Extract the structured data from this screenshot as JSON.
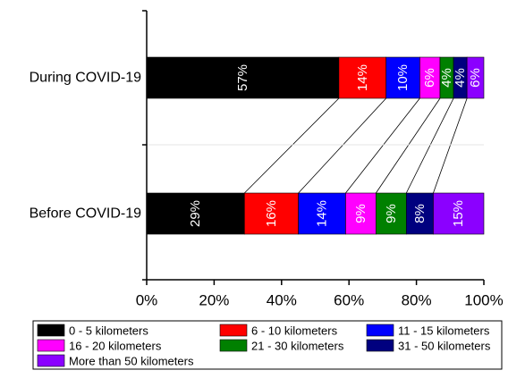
{
  "chart_data": {
    "type": "bar",
    "orientation": "horizontal",
    "stacked": true,
    "normalized_percent": true,
    "categories": [
      "During COVID-19",
      "Before COVID-19"
    ],
    "series": [
      {
        "name": "0 - 5 kilometers",
        "color": "#000000",
        "text_color": "#ffffff",
        "values": [
          57,
          29
        ]
      },
      {
        "name": "6 - 10 kilometers",
        "color": "#ff0000",
        "text_color": "#ffffff",
        "values": [
          14,
          16
        ]
      },
      {
        "name": "11 - 15 kilometers",
        "color": "#0000ff",
        "text_color": "#ffffff",
        "values": [
          10,
          14
        ]
      },
      {
        "name": "16 - 20 kilometers",
        "color": "#ff00ff",
        "text_color": "#ffffff",
        "values": [
          6,
          9
        ]
      },
      {
        "name": "21 - 30 kilometers",
        "color": "#008000",
        "text_color": "#ffffff",
        "values": [
          4,
          9
        ]
      },
      {
        "name": "31 - 50 kilometers",
        "color": "#00007f",
        "text_color": "#ffffff",
        "values": [
          4,
          8
        ]
      },
      {
        "name": "More than 50 kilometers",
        "color": "#8b00ff",
        "text_color": "#ffffff",
        "values": [
          6,
          15
        ]
      }
    ],
    "xlim": [
      0,
      100
    ],
    "xticks": [
      "0%",
      "20%",
      "40%",
      "60%",
      "80%",
      "100%"
    ],
    "xlabel": "",
    "ylabel": "",
    "title": "",
    "connector_lines": true,
    "legend_position": "bottom",
    "grid": false
  }
}
